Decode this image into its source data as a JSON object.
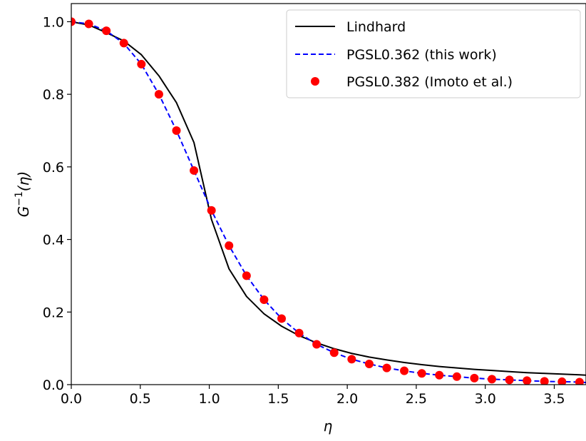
{
  "chart_data": {
    "type": "line",
    "title": "",
    "xlabel": "η",
    "ylabel_main": "G",
    "ylabel_sup": "−1",
    "ylabel_arg": "(η)",
    "xlim": [
      0.0,
      3.73
    ],
    "ylim": [
      0.0,
      1.05
    ],
    "x_ticks": [
      "0.0",
      "0.5",
      "1.0",
      "1.5",
      "2.0",
      "2.5",
      "3.0",
      "3.5"
    ],
    "x_tick_values": [
      0.0,
      0.5,
      1.0,
      1.5,
      2.0,
      2.5,
      3.0,
      3.5
    ],
    "y_ticks": [
      "0.0",
      "0.2",
      "0.4",
      "0.6",
      "0.8",
      "1.0"
    ],
    "y_tick_values": [
      0.0,
      0.2,
      0.4,
      0.6,
      0.8,
      1.0
    ],
    "grid": false,
    "legend_position": "top-right",
    "series": [
      {
        "name": "Lindhard",
        "style": "solid-line",
        "color": "#000000",
        "x": [
          0.0,
          0.127,
          0.254,
          0.381,
          0.508,
          0.635,
          0.762,
          0.889,
          1.016,
          1.143,
          1.27,
          1.397,
          1.524,
          1.651,
          1.778,
          1.905,
          2.032,
          2.159,
          2.286,
          2.413,
          2.54,
          2.667,
          2.794,
          2.921,
          3.048,
          3.175,
          3.302,
          3.429,
          3.556,
          3.683,
          3.73
        ],
        "y": [
          1.0,
          0.991,
          0.97,
          0.947,
          0.909,
          0.851,
          0.777,
          0.667,
          0.455,
          0.319,
          0.243,
          0.195,
          0.161,
          0.135,
          0.115,
          0.099,
          0.086,
          0.076,
          0.068,
          0.061,
          0.055,
          0.05,
          0.046,
          0.042,
          0.039,
          0.036,
          0.033,
          0.031,
          0.029,
          0.027,
          0.026
        ]
      },
      {
        "name": "PGSL0.362 (this work)",
        "style": "dashed-line",
        "color": "#0000ff",
        "x": [
          0.0,
          0.127,
          0.254,
          0.381,
          0.508,
          0.635,
          0.762,
          0.889,
          1.016,
          1.143,
          1.27,
          1.397,
          1.524,
          1.651,
          1.778,
          1.905,
          2.032,
          2.159,
          2.286,
          2.413,
          2.54,
          2.667,
          2.794,
          2.921,
          3.048,
          3.175,
          3.302,
          3.429,
          3.556,
          3.683,
          3.73
        ],
        "y": [
          1.0,
          0.994,
          0.975,
          0.94,
          0.883,
          0.8,
          0.7,
          0.59,
          0.48,
          0.383,
          0.3,
          0.234,
          0.182,
          0.142,
          0.111,
          0.088,
          0.07,
          0.057,
          0.046,
          0.038,
          0.031,
          0.026,
          0.022,
          0.018,
          0.015,
          0.013,
          0.011,
          0.009,
          0.008,
          0.007,
          0.006
        ]
      },
      {
        "name": "PGSL0.382 (Imoto et al.)",
        "style": "markers",
        "color": "#ff0000",
        "x": [
          0.0,
          0.127,
          0.254,
          0.381,
          0.508,
          0.635,
          0.762,
          0.889,
          1.016,
          1.143,
          1.27,
          1.397,
          1.524,
          1.651,
          1.778,
          1.905,
          2.032,
          2.159,
          2.286,
          2.413,
          2.54,
          2.667,
          2.794,
          2.921,
          3.048,
          3.175,
          3.302,
          3.429,
          3.556,
          3.683
        ],
        "y": [
          1.0,
          0.994,
          0.975,
          0.941,
          0.883,
          0.8,
          0.7,
          0.59,
          0.48,
          0.383,
          0.3,
          0.234,
          0.182,
          0.142,
          0.111,
          0.088,
          0.07,
          0.057,
          0.046,
          0.038,
          0.031,
          0.026,
          0.022,
          0.018,
          0.015,
          0.013,
          0.011,
          0.009,
          0.008,
          0.007
        ]
      }
    ]
  }
}
